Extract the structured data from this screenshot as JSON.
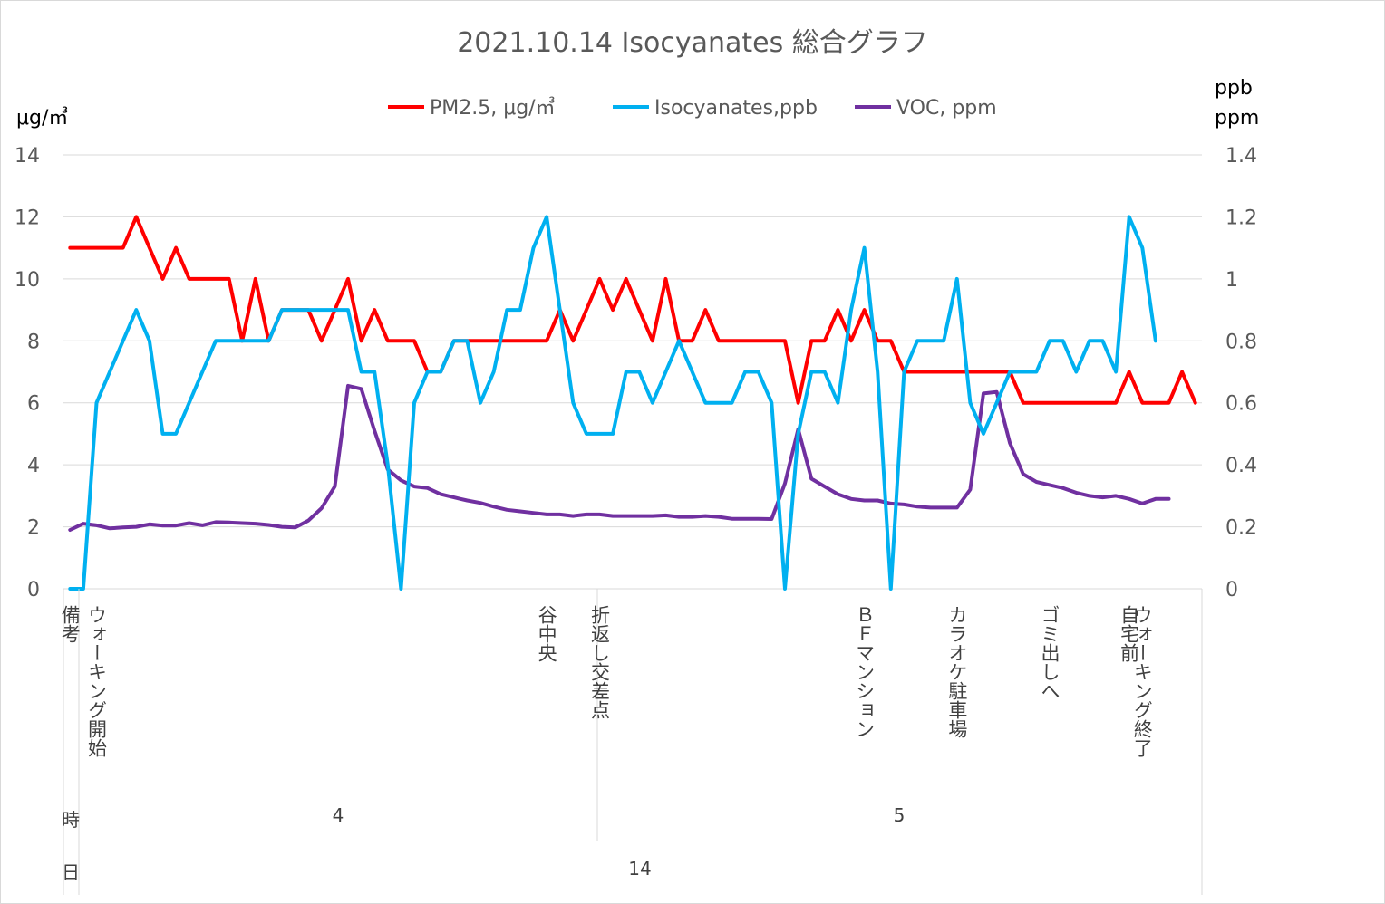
{
  "chart_data": {
    "type": "line",
    "title": "2021.10.14 Isocyanates 総合グラフ",
    "y_left": {
      "unit": "μg/㎥",
      "ylim": [
        0,
        14
      ],
      "ticks": [
        "14",
        "12",
        "10",
        "8",
        "6",
        "4",
        "2",
        "0"
      ]
    },
    "y_right": {
      "unit_lines": [
        "ppb",
        "ppm"
      ],
      "ylim": [
        0,
        1.4
      ],
      "ticks": [
        "1.4",
        "1.2",
        "1",
        "0.8",
        "0.6",
        "0.4",
        "0.2",
        "0"
      ]
    },
    "legend_position": "top",
    "grid": "horizontal",
    "colors": {
      "pm25": "#ff0000",
      "isocyanates": "#00b0f0",
      "voc": "#7030a0",
      "grid": "#d9d9d9",
      "text": "#595959"
    },
    "series": [
      {
        "name": "PM2.5, μg/㎥",
        "axis": "left",
        "color": "#ff0000",
        "values": [
          11,
          11,
          11,
          11,
          11,
          12,
          11,
          10,
          11,
          10,
          10,
          10,
          10,
          8,
          10,
          8,
          9,
          9,
          9,
          8,
          9,
          10,
          8,
          9,
          8,
          8,
          8,
          7,
          7,
          8,
          8,
          8,
          8,
          8,
          8,
          8,
          8,
          9,
          8,
          9,
          10,
          9,
          10,
          9,
          8,
          10,
          8,
          8,
          9,
          8,
          8,
          8,
          8,
          8,
          8,
          6,
          8,
          8,
          9,
          8,
          9,
          8,
          8,
          7,
          7,
          7,
          7,
          7,
          7,
          7,
          7,
          7,
          6,
          6,
          6,
          6,
          6,
          6,
          6,
          6,
          7,
          6,
          6,
          6,
          7,
          6
        ]
      },
      {
        "name": "Isocyanates,ppb",
        "axis": "right",
        "color": "#00b0f0",
        "values": [
          0,
          0,
          0.6,
          0.7,
          0.8,
          0.9,
          0.8,
          0.5,
          0.5,
          0.6,
          0.7,
          0.8,
          0.8,
          0.8,
          0.8,
          0.8,
          0.9,
          0.9,
          0.9,
          0.9,
          0.9,
          0.9,
          0.7,
          0.7,
          0.4,
          0,
          0.6,
          0.7,
          0.7,
          0.8,
          0.8,
          0.6,
          0.7,
          0.9,
          0.9,
          1.1,
          1.2,
          0.9,
          0.6,
          0.5,
          0.5,
          0.5,
          0.7,
          0.7,
          0.6,
          0.7,
          0.8,
          0.7,
          0.6,
          0.6,
          0.6,
          0.7,
          0.7,
          0.6,
          0,
          0.5,
          0.7,
          0.7,
          0.6,
          0.9,
          1.1,
          0.7,
          0,
          0.7,
          0.8,
          0.8,
          0.8,
          1.0,
          0.6,
          0.5,
          0.6,
          0.7,
          0.7,
          0.7,
          0.8,
          0.8,
          0.7,
          0.8,
          0.8,
          0.7,
          1.2,
          1.1,
          0.8
        ]
      },
      {
        "name": "VOC, ppm",
        "axis": "right",
        "color": "#7030a0",
        "values": [
          0.19,
          0.21,
          0.205,
          0.195,
          0.198,
          0.2,
          0.208,
          0.204,
          0.204,
          0.212,
          0.205,
          0.215,
          0.214,
          0.212,
          0.21,
          0.206,
          0.2,
          0.198,
          0.22,
          0.26,
          0.33,
          0.655,
          0.645,
          0.51,
          0.385,
          0.35,
          0.33,
          0.325,
          0.305,
          0.295,
          0.285,
          0.277,
          0.265,
          0.255,
          0.25,
          0.245,
          0.24,
          0.24,
          0.235,
          0.24,
          0.24,
          0.235,
          0.235,
          0.235,
          0.235,
          0.237,
          0.232,
          0.232,
          0.235,
          0.232,
          0.226,
          0.226,
          0.226,
          0.225,
          0.34,
          0.515,
          0.355,
          0.33,
          0.305,
          0.29,
          0.285,
          0.285,
          0.275,
          0.272,
          0.265,
          0.262,
          0.262,
          0.262,
          0.32,
          0.63,
          0.635,
          0.47,
          0.37,
          0.345,
          0.335,
          0.325,
          0.31,
          0.3,
          0.295,
          0.3,
          0.29,
          0.275,
          0.29,
          0.29
        ]
      }
    ],
    "category_labels": [
      {
        "text": "備考",
        "index": 0
      },
      {
        "text": "ウォーキング開始",
        "index": 2
      },
      {
        "text": "谷中央",
        "index": 36
      },
      {
        "text": "折返し交差点",
        "index": 40
      },
      {
        "text": "ＢＦマンション",
        "index": 60
      },
      {
        "text": "カラオケ駐車場",
        "index": 67
      },
      {
        "text": "ゴミ出しへ",
        "index": 74
      },
      {
        "text": "自宅前",
        "index": 80
      },
      {
        "text": "ウォーキング終了",
        "index": 81
      }
    ],
    "group_rows": [
      {
        "label": "時",
        "groups": [
          "4",
          "5"
        ]
      },
      {
        "label": "日",
        "groups": [
          "14"
        ]
      }
    ]
  }
}
